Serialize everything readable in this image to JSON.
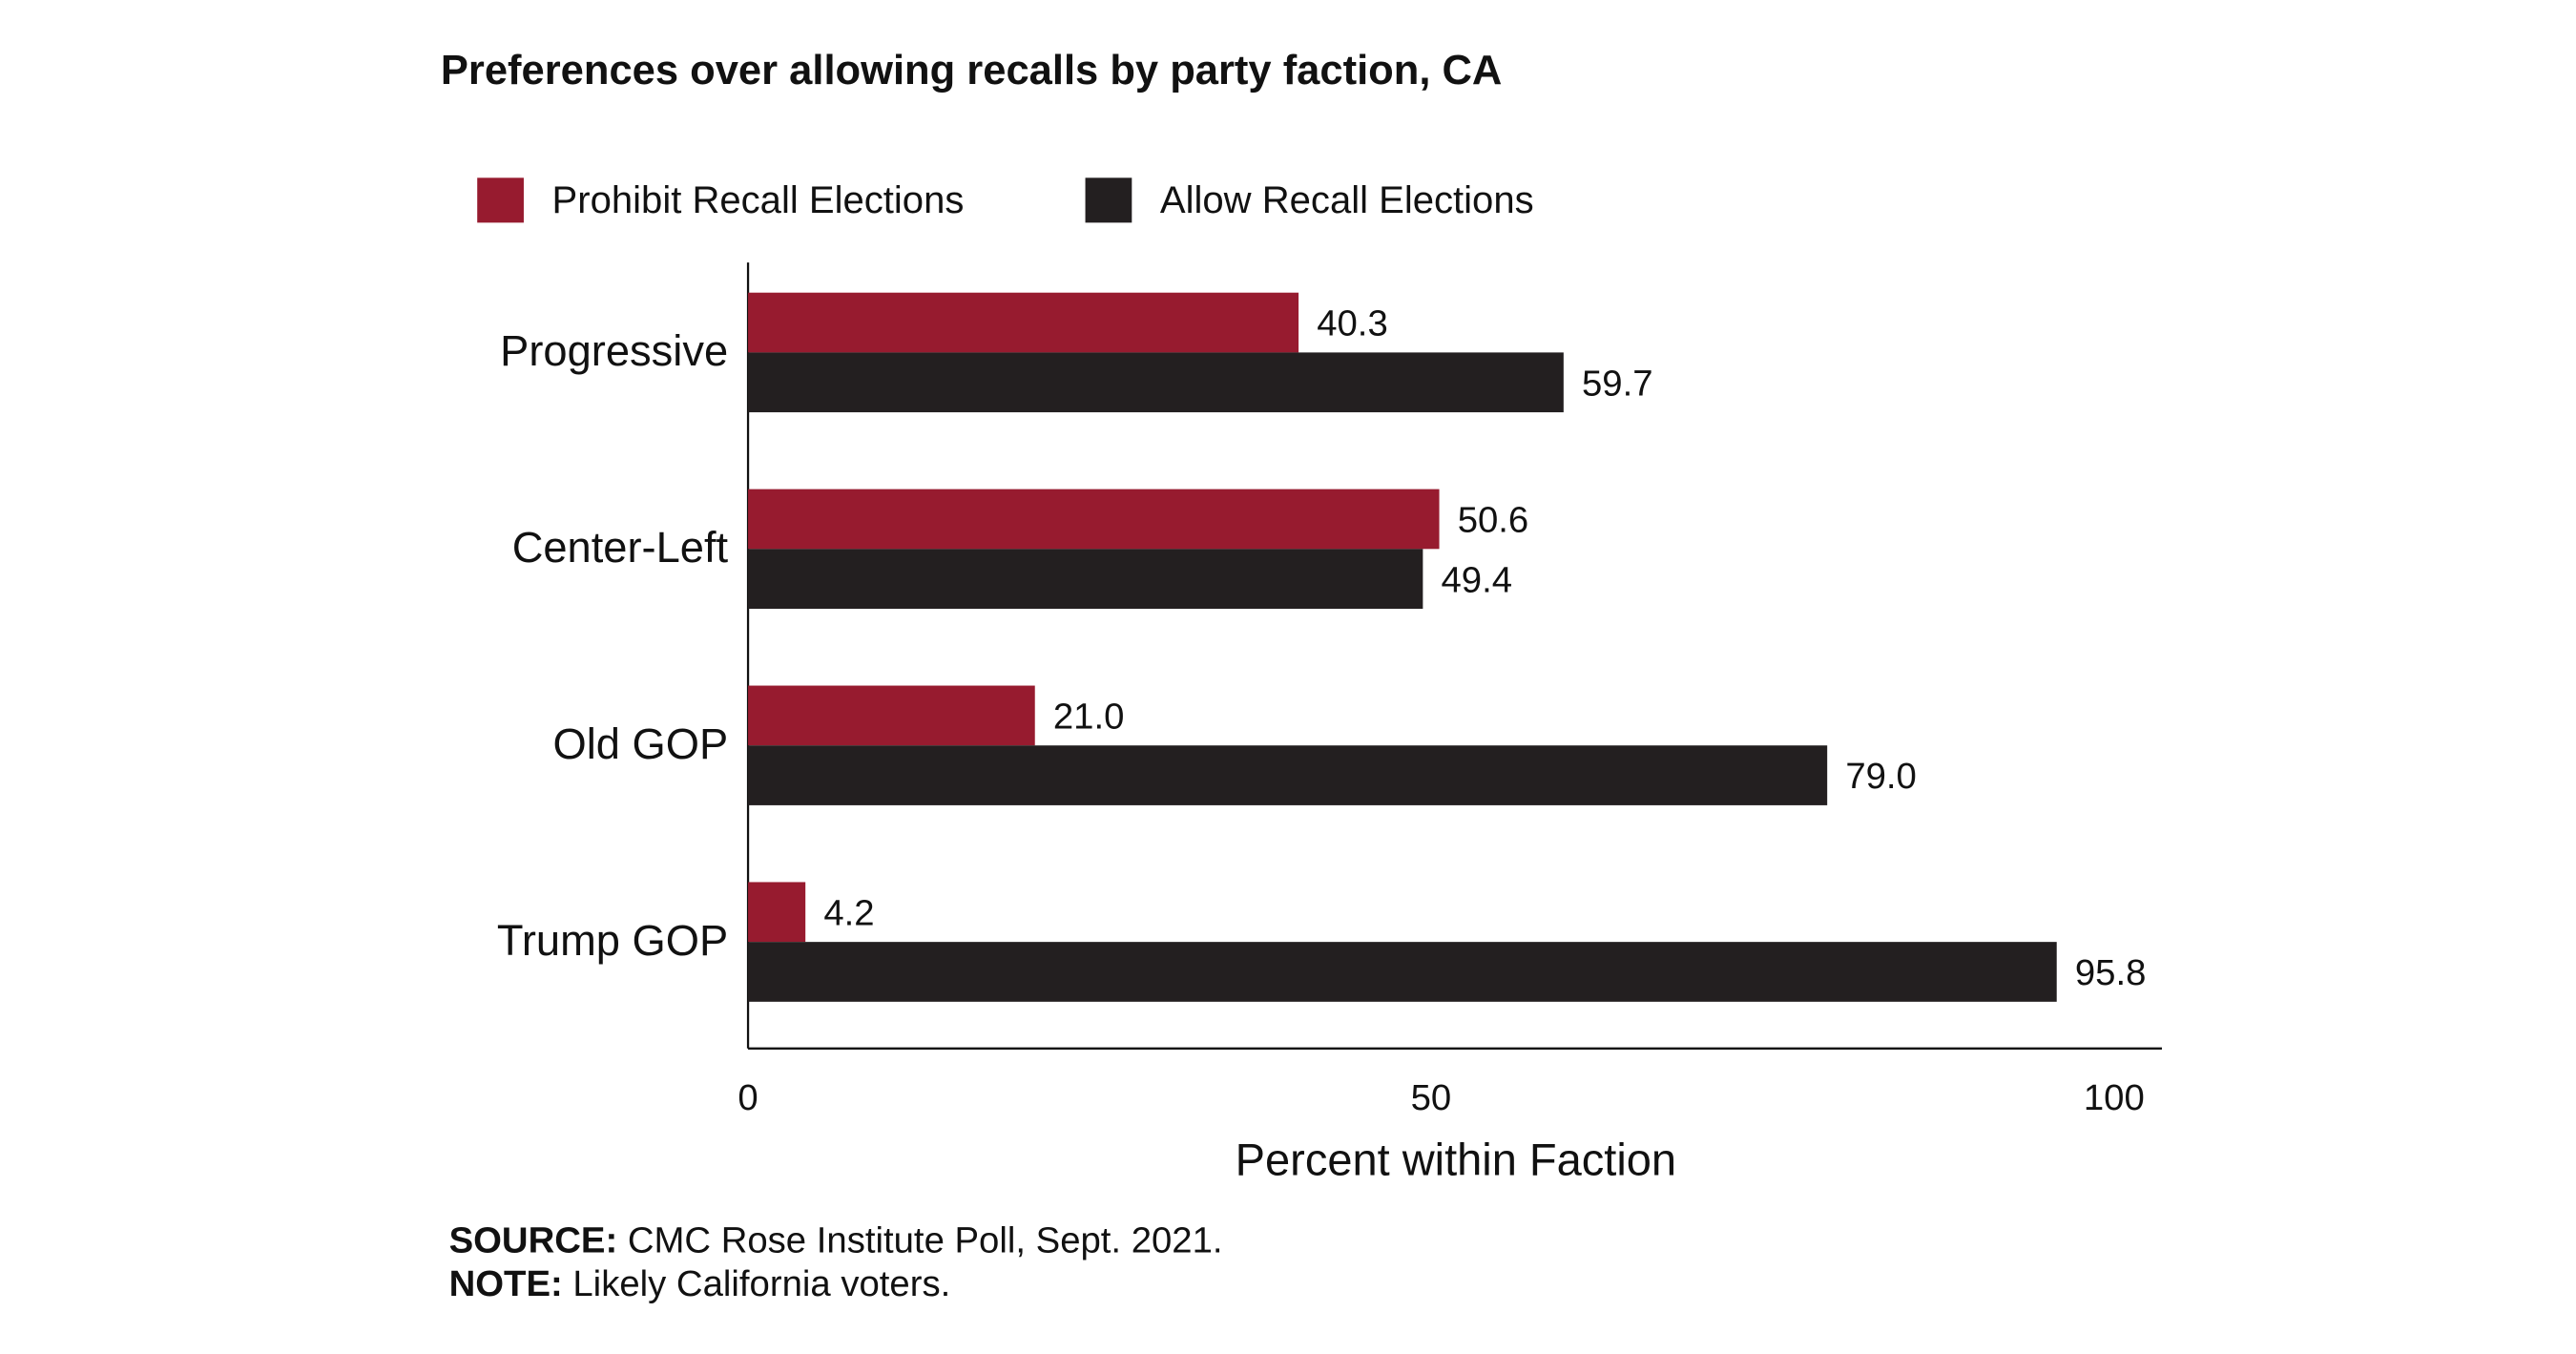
{
  "chart_data": {
    "type": "hbar",
    "title": "Preferences over allowing recalls by party faction, CA",
    "x_label": "Percent within Faction",
    "categories": [
      "Progressive",
      "Center-Left",
      "Old GOP",
      "Trump GOP"
    ],
    "series": [
      {
        "name": "Prohibit Recall Elections",
        "color": "#971b2f",
        "values": [
          40.3,
          50.6,
          21.0,
          4.2
        ],
        "value_labels": [
          "40.3",
          "50.6",
          "21.0",
          "4.2"
        ]
      },
      {
        "name": "Allow Recall Elections",
        "color": "#231f20",
        "values": [
          59.7,
          49.4,
          79.0,
          95.8
        ],
        "value_labels": [
          "59.7",
          "49.4",
          "79.0",
          "95.8"
        ]
      }
    ],
    "xlim": [
      0,
      103.5
    ],
    "xticks": [
      0,
      50,
      100
    ],
    "grid": false,
    "legend": "top",
    "source_label": "SOURCE:",
    "source": "CMC Rose Institute Poll, Sept. 2021.",
    "note_label": "NOTE:",
    "note": "Likely California voters."
  }
}
